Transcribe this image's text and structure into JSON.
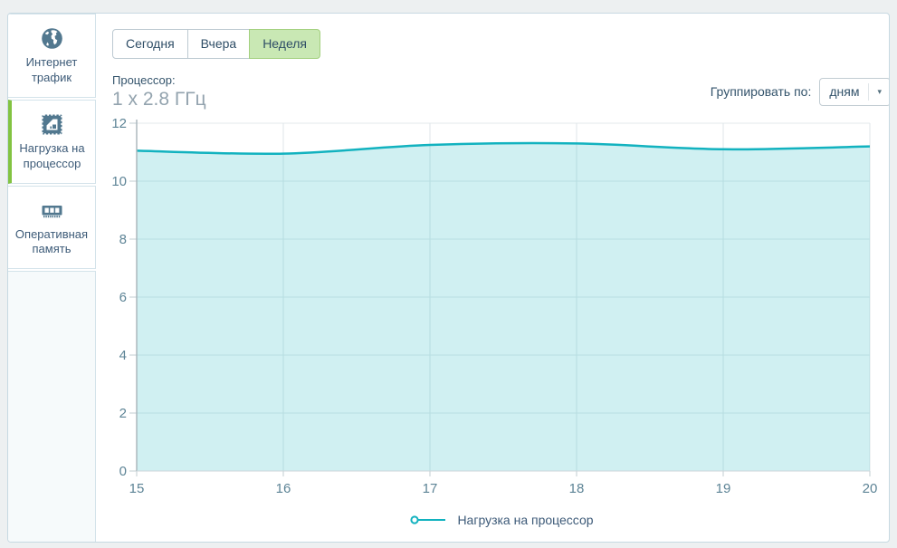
{
  "sidebar": {
    "items": [
      {
        "label": "Интернет трафик",
        "icon": "globe-icon",
        "active": false
      },
      {
        "label": "Нагрузка на процессор",
        "icon": "cpu-icon",
        "active": true
      },
      {
        "label": "Оперативная память",
        "icon": "ram-icon",
        "active": false
      }
    ]
  },
  "tabs": [
    {
      "label": "Сегодня",
      "selected": false
    },
    {
      "label": "Вчера",
      "selected": false
    },
    {
      "label": "Неделя",
      "selected": true
    }
  ],
  "header": {
    "metric_label": "Процессор:",
    "metric_value": "1 x 2.8 ГГц",
    "group_by_label": "Группировать по:",
    "group_by_value": "дням",
    "caret": "▾"
  },
  "chart_data": {
    "type": "area",
    "title": "",
    "xlabel": "",
    "ylabel": "",
    "x": [
      15,
      16,
      17,
      18,
      19,
      20
    ],
    "series": [
      {
        "name": "Нагрузка на процессор",
        "values": [
          11.05,
          10.95,
          11.25,
          11.3,
          11.1,
          11.2
        ]
      }
    ],
    "ylim": [
      0,
      12
    ],
    "yticks": [
      0,
      2,
      4,
      6,
      8,
      10,
      12
    ],
    "grid": true,
    "legend_position": "bottom",
    "line_color": "#12b2bf",
    "fill_color": "rgba(18,178,191,0.2)",
    "grid_color": "#e3e9eb",
    "vgrid_color": "#dfe6e9",
    "axis_color": "#a8b4ba",
    "baseline_color": "#ccd5d9",
    "tick_color": "#c0ccd2"
  },
  "colors": {
    "accent_green": "#82c341",
    "selected_tab_bg": "#c9e8b4",
    "selected_tab_border": "#a3d07f",
    "icon_slate": "#52788f",
    "panel_border": "#c7d9e2"
  }
}
